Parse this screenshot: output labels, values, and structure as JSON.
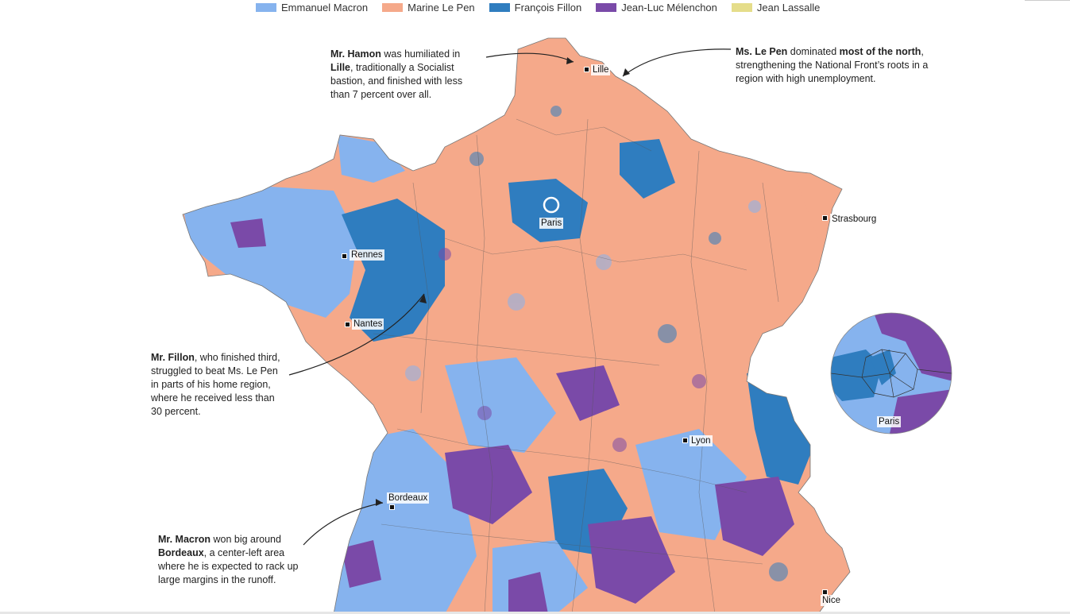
{
  "legend": [
    {
      "label": "Emmanuel Macron",
      "color": "#86b3ee"
    },
    {
      "label": "Marine Le Pen",
      "color": "#f5a98a"
    },
    {
      "label": "François Fillon",
      "color": "#2f7dbf"
    },
    {
      "label": "Jean-Luc Mélenchon",
      "color": "#7a4aa8"
    },
    {
      "label": "Jean Lassalle",
      "color": "#e5dd8a"
    }
  ],
  "cities": {
    "lille": "Lille",
    "paris": "Paris",
    "strasbourg": "Strasbourg",
    "rennes": "Rennes",
    "nantes": "Nantes",
    "lyon": "Lyon",
    "bordeaux": "Bordeaux",
    "nice": "Nice",
    "paris_inset": "Paris"
  },
  "annotations": {
    "hamon": {
      "bold1": "Mr. Hamon",
      "text1": " was humiliated in ",
      "bold2": "Lille",
      "text2": ", traditionally a Socialist bastion, and finished with less than 7 percent over all."
    },
    "lepen": {
      "bold1": "Ms. Le Pen",
      "text1": " dominated ",
      "bold2": "most of the north",
      "text2": ", strengthening the National Front’s roots in a region with high unemployment."
    },
    "fillon": {
      "bold1": "Mr. Fillon",
      "text1": ", who finished third, struggled to beat Ms. Le Pen in parts of his home region, where he received less than 30 percent."
    },
    "macron": {
      "bold1": "Mr. Macron",
      "text1": " won big around ",
      "bold2": "Bordeaux",
      "text2": ", a center-left area where he is expected to rack up large margins in the runoff."
    }
  }
}
